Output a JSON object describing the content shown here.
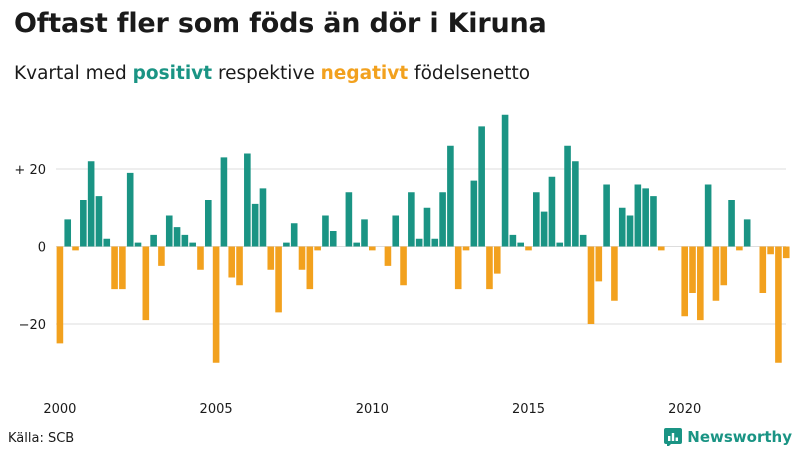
{
  "title": "Oftast fler som föds än dör i Kiruna",
  "subtitle": {
    "prefix": "Kvartal med ",
    "positive": "positivt",
    "middle": " respektive ",
    "negative": "negativt",
    "suffix": " födelsenetto"
  },
  "source": "Källa: SCB",
  "brand": {
    "name": "Newsworthy",
    "icon": "bar-chart-logo-icon"
  },
  "colors": {
    "positive": "#1a9484",
    "negative": "#f2a11e",
    "grid": "#dddddd",
    "text": "#1a1a1a"
  },
  "chart_data": {
    "type": "bar",
    "x_start": "2000 Q1",
    "frequency": "quarterly",
    "x_ticks": [
      "2000",
      "2005",
      "2010",
      "2015",
      "2020"
    ],
    "y_ticks": [
      {
        "value": 20,
        "label": "+ 20"
      },
      {
        "value": 0,
        "label": "0"
      },
      {
        "value": -20,
        "label": "−20"
      }
    ],
    "ylim": [
      -33,
      36
    ],
    "grid": true,
    "values": [
      -25,
      7,
      -1,
      12,
      22,
      13,
      2,
      -11,
      -11,
      19,
      1,
      -19,
      3,
      -5,
      8,
      5,
      3,
      1,
      -6,
      12,
      -30,
      23,
      -8,
      -10,
      24,
      11,
      15,
      -6,
      -17,
      1,
      6,
      -6,
      -11,
      -1,
      8,
      4,
      0,
      14,
      1,
      7,
      -1,
      0,
      -5,
      8,
      -10,
      14,
      2,
      10,
      2,
      14,
      26,
      -11,
      -1,
      17,
      31,
      -11,
      -7,
      34,
      3,
      1,
      -1,
      14,
      9,
      18,
      1,
      26,
      22,
      3,
      -20,
      -9,
      16,
      -14,
      10,
      8,
      16,
      15,
      13,
      -1,
      0,
      0,
      -18,
      -12,
      -19,
      16,
      -14,
      -10,
      12,
      -1,
      7,
      0,
      -12,
      -2,
      -30,
      -3
    ]
  }
}
